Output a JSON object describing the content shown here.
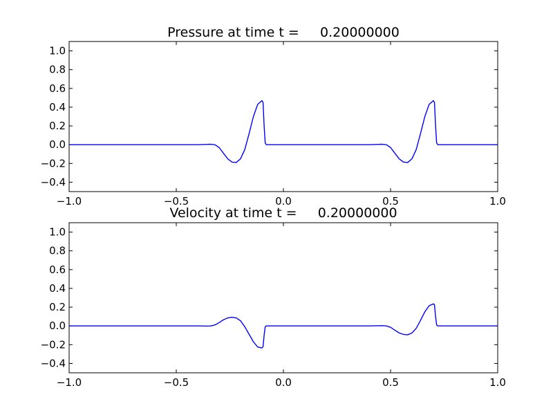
{
  "chart_data": [
    {
      "type": "line",
      "title": "Pressure at time t =     0.20000000",
      "xlim": [
        -1.0,
        1.0
      ],
      "ylim": [
        -0.5,
        1.1
      ],
      "xticks": [
        -1.0,
        -0.5,
        0.0,
        0.5,
        1.0
      ],
      "xtick_labels": [
        "−1.0",
        "−0.5",
        "0.0",
        "0.5",
        "1.0"
      ],
      "yticks": [
        -0.4,
        -0.2,
        0.0,
        0.2,
        0.4,
        0.6,
        0.8,
        1.0
      ],
      "ytick_labels": [
        "−0.4",
        "−0.2",
        "0.0",
        "0.2",
        "0.4",
        "0.6",
        "0.8",
        "1.0"
      ],
      "grid": false,
      "line_color": "#0000ff",
      "series": [
        {
          "x": [
            -1.0,
            -0.5,
            -0.4,
            -0.36,
            -0.34,
            -0.32,
            -0.3,
            -0.28,
            -0.26,
            -0.24,
            -0.22,
            -0.2,
            -0.18,
            -0.16,
            -0.14,
            -0.12,
            -0.1,
            -0.095,
            -0.09,
            -0.085,
            -0.08,
            0.0,
            0.35,
            0.4,
            0.44,
            0.46,
            0.48,
            0.5,
            0.52,
            0.54,
            0.56,
            0.58,
            0.6,
            0.62,
            0.64,
            0.66,
            0.68,
            0.7,
            0.705,
            0.71,
            0.715,
            0.72,
            1.0
          ],
          "y": [
            0.0,
            0.0,
            0.0,
            0.003,
            0.005,
            0.0,
            -0.03,
            -0.09,
            -0.15,
            -0.185,
            -0.19,
            -0.15,
            -0.05,
            0.12,
            0.3,
            0.43,
            0.47,
            0.45,
            0.2,
            0.02,
            0.0,
            0.0,
            0.0,
            0.0,
            0.003,
            0.005,
            0.0,
            -0.03,
            -0.09,
            -0.15,
            -0.185,
            -0.19,
            -0.15,
            -0.05,
            0.12,
            0.3,
            0.43,
            0.47,
            0.45,
            0.2,
            0.02,
            0.0,
            0.0
          ]
        }
      ]
    },
    {
      "type": "line",
      "title": "Velocity at time t =     0.20000000",
      "xlim": [
        -1.0,
        1.0
      ],
      "ylim": [
        -0.5,
        1.1
      ],
      "xticks": [
        -1.0,
        -0.5,
        0.0,
        0.5,
        1.0
      ],
      "xtick_labels": [
        "−1.0",
        "−0.5",
        "0.0",
        "0.5",
        "1.0"
      ],
      "yticks": [
        -0.4,
        -0.2,
        0.0,
        0.2,
        0.4,
        0.6,
        0.8,
        1.0
      ],
      "ytick_labels": [
        "−0.4",
        "−0.2",
        "0.0",
        "0.2",
        "0.4",
        "0.6",
        "0.8",
        "1.0"
      ],
      "grid": false,
      "line_color": "#0000ff",
      "series": [
        {
          "x": [
            -1.0,
            -0.5,
            -0.4,
            -0.36,
            -0.34,
            -0.32,
            -0.3,
            -0.28,
            -0.26,
            -0.24,
            -0.22,
            -0.2,
            -0.18,
            -0.16,
            -0.14,
            -0.12,
            -0.1,
            -0.095,
            -0.09,
            -0.085,
            -0.08,
            0.0,
            0.35,
            0.4,
            0.44,
            0.46,
            0.48,
            0.5,
            0.52,
            0.54,
            0.56,
            0.58,
            0.6,
            0.62,
            0.64,
            0.66,
            0.68,
            0.7,
            0.705,
            0.71,
            0.715,
            0.72,
            1.0
          ],
          "y": [
            0.0,
            0.0,
            0.0,
            -0.002,
            -0.001,
            0.01,
            0.035,
            0.065,
            0.085,
            0.092,
            0.085,
            0.055,
            -0.01,
            -0.09,
            -0.17,
            -0.225,
            -0.235,
            -0.22,
            -0.1,
            -0.01,
            0.0,
            0.0,
            0.0,
            0.0,
            0.002,
            0.003,
            0.0,
            -0.015,
            -0.045,
            -0.075,
            -0.09,
            -0.095,
            -0.075,
            -0.025,
            0.06,
            0.15,
            0.215,
            0.235,
            0.225,
            0.1,
            0.01,
            0.0,
            0.0
          ]
        }
      ]
    }
  ]
}
